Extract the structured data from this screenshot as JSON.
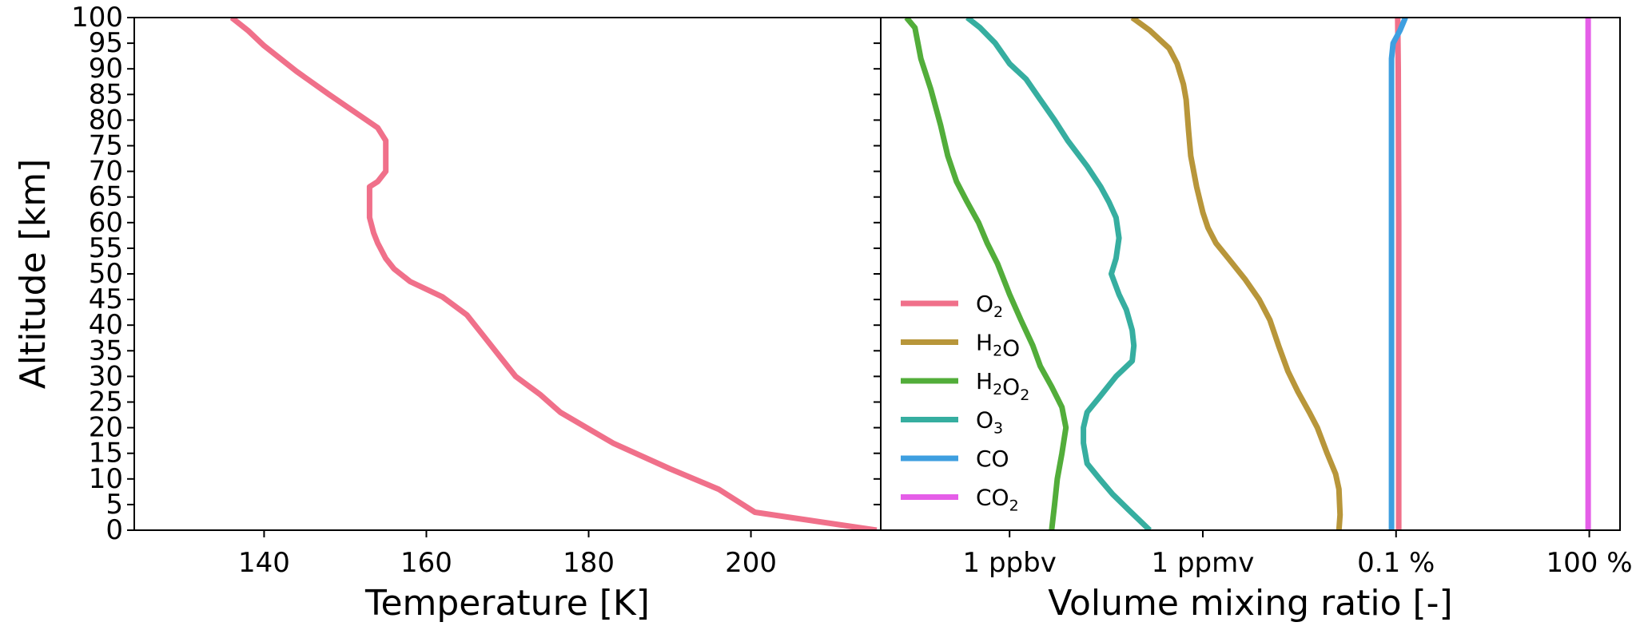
{
  "chart_data": [
    {
      "type": "line",
      "panel": "left",
      "xlabel": "Temperature [K]",
      "ylabel": "Altitude [km]",
      "xlim": [
        124,
        216
      ],
      "ylim": [
        0,
        100
      ],
      "x_ticks": [
        140,
        160,
        180,
        200
      ],
      "y_ticks": [
        0,
        5,
        10,
        15,
        20,
        25,
        30,
        35,
        40,
        45,
        50,
        55,
        60,
        65,
        70,
        75,
        80,
        85,
        90,
        95,
        100
      ],
      "grid": false,
      "series": [
        {
          "name": "Temperature",
          "color": "#f0708a",
          "points": [
            [
              215.5,
              0
            ],
            [
              200.5,
              3.5
            ],
            [
              196,
              8
            ],
            [
              190,
              12
            ],
            [
              183,
              17
            ],
            [
              176.5,
              23
            ],
            [
              174,
              26.5
            ],
            [
              171,
              30
            ],
            [
              169,
              34
            ],
            [
              167,
              38
            ],
            [
              165,
              42
            ],
            [
              162,
              45.5
            ],
            [
              158,
              48.5
            ],
            [
              156,
              51
            ],
            [
              155,
              53
            ],
            [
              154,
              56
            ],
            [
              153.5,
              58
            ],
            [
              153,
              61
            ],
            [
              153,
              64
            ],
            [
              153,
              67
            ],
            [
              154,
              68
            ],
            [
              155,
              70
            ],
            [
              155,
              71
            ],
            [
              155,
              74
            ],
            [
              155,
              76
            ],
            [
              154,
              78.5
            ],
            [
              148,
              85
            ],
            [
              144,
              89.5
            ],
            [
              140,
              94.5
            ],
            [
              138,
              97.5
            ],
            [
              136,
              100
            ]
          ]
        }
      ]
    },
    {
      "type": "line",
      "panel": "right",
      "xscale": "log",
      "xlabel": "Volume mixing ratio [-]",
      "ylabel": "",
      "xlim": [
        1e-11,
        3
      ],
      "ylim": [
        0,
        100
      ],
      "x_ticks": [
        {
          "value": 1e-09,
          "label": "1 ppbv"
        },
        {
          "value": 1e-06,
          "label": "1 ppmv"
        },
        {
          "value": 0.001,
          "label": "0.1 %"
        },
        {
          "value": 1,
          "label": "100 %"
        }
      ],
      "y_ticks": [
        0,
        5,
        10,
        15,
        20,
        25,
        30,
        35,
        40,
        45,
        50,
        55,
        60,
        65,
        70,
        75,
        80,
        85,
        90,
        95,
        100
      ],
      "grid": false,
      "legend": {
        "placement": "center-left"
      },
      "series": [
        {
          "name": "O₂",
          "base": "O",
          "sub": "2",
          "tail": "",
          "color": "#f0708a",
          "points": [
            [
              0.0011,
              0
            ],
            [
              0.0011,
              30
            ],
            [
              0.0011,
              60
            ],
            [
              0.00108,
              90
            ],
            [
              0.00106,
              100
            ]
          ]
        },
        {
          "name": "H₂O",
          "base": "H",
          "sub": "2",
          "tail": "O",
          "color": "#b8963a",
          "points": [
            [
              0.00013,
              0
            ],
            [
              0.000135,
              3
            ],
            [
              0.00013,
              8
            ],
            [
              0.000115,
              11
            ],
            [
              8.5e-05,
              15
            ],
            [
              6e-05,
              20
            ],
            [
              4.5e-05,
              23
            ],
            [
              3e-05,
              27
            ],
            [
              2.1e-05,
              31
            ],
            [
              1.5e-05,
              36
            ],
            [
              1.1e-05,
              41
            ],
            [
              7.5e-06,
              45
            ],
            [
              4.5e-06,
              49
            ],
            [
              2.5e-06,
              53
            ],
            [
              1.6e-06,
              56
            ],
            [
              1.2e-06,
              59
            ],
            [
              1e-06,
              62
            ],
            [
              8e-07,
              67
            ],
            [
              6.5e-07,
              73
            ],
            [
              6e-07,
              78
            ],
            [
              5.5e-07,
              84
            ],
            [
              5e-07,
              87
            ],
            [
              4e-07,
              91
            ],
            [
              3e-07,
              94
            ],
            [
              1.5e-07,
              97.5
            ],
            [
              8e-08,
              100
            ]
          ]
        },
        {
          "name": "H₂O₂",
          "base": "H",
          "sub": "2",
          "tail": "O",
          "sub2": "2",
          "color": "#52ad3a",
          "points": [
            [
              4.5e-09,
              0
            ],
            [
              5e-09,
              5
            ],
            [
              5.5e-09,
              10
            ],
            [
              6.5e-09,
              15
            ],
            [
              7.5e-09,
              20
            ],
            [
              6.5e-09,
              24
            ],
            [
              4.5e-09,
              28
            ],
            [
              3e-09,
              32
            ],
            [
              2.3e-09,
              36
            ],
            [
              1.5e-09,
              41
            ],
            [
              1e-09,
              46
            ],
            [
              6.5e-10,
              52
            ],
            [
              4.5e-10,
              56
            ],
            [
              3.3e-10,
              60
            ],
            [
              2.2e-10,
              64
            ],
            [
              1.5e-10,
              68
            ],
            [
              1.1e-10,
              73
            ],
            [
              8.5e-11,
              79
            ],
            [
              6e-11,
              86
            ],
            [
              4.2e-11,
              92
            ],
            [
              3.4e-11,
              98
            ],
            [
              2.5e-11,
              100
            ]
          ]
        },
        {
          "name": "O₃",
          "base": "O",
          "sub": "3",
          "tail": "",
          "color": "#36aea0",
          "points": [
            [
              1.5e-07,
              0
            ],
            [
              7e-08,
              4
            ],
            [
              4e-08,
              7
            ],
            [
              2.5e-08,
              10
            ],
            [
              1.6e-08,
              13
            ],
            [
              1.4e-08,
              17
            ],
            [
              1.4e-08,
              20
            ],
            [
              1.6e-08,
              23
            ],
            [
              2.5e-08,
              26
            ],
            [
              4.5e-08,
              30
            ],
            [
              8e-08,
              33
            ],
            [
              8.5e-08,
              36
            ],
            [
              8e-08,
              39
            ],
            [
              6.5e-08,
              43
            ],
            [
              5e-08,
              46
            ],
            [
              3.8e-08,
              50
            ],
            [
              4.5e-08,
              53
            ],
            [
              5e-08,
              57
            ],
            [
              4.5e-08,
              61
            ],
            [
              3.5e-08,
              64
            ],
            [
              2.6e-08,
              67
            ],
            [
              1.6e-08,
              71
            ],
            [
              8e-09,
              76
            ],
            [
              5e-09,
              80
            ],
            [
              3e-09,
              84
            ],
            [
              1.8e-09,
              88
            ],
            [
              1e-09,
              91
            ],
            [
              6e-10,
              95
            ],
            [
              3.5e-10,
              98
            ],
            [
              2.2e-10,
              100
            ]
          ]
        },
        {
          "name": "CO",
          "base": "CO",
          "sub": "",
          "tail": "",
          "color": "#3e9fe0",
          "points": [
            [
              0.00085,
              0
            ],
            [
              0.00085,
              30
            ],
            [
              0.00085,
              60
            ],
            [
              0.00085,
              85
            ],
            [
              0.00085,
              92
            ],
            [
              0.0009,
              95
            ],
            [
              0.00115,
              97.5
            ],
            [
              0.0014,
              100
            ]
          ]
        },
        {
          "name": "CO₂",
          "base": "CO",
          "sub": "2",
          "tail": "",
          "color": "#e55ee8",
          "points": [
            [
              0.96,
              0
            ],
            [
              0.96,
              50
            ],
            [
              0.96,
              100
            ]
          ]
        }
      ]
    }
  ]
}
